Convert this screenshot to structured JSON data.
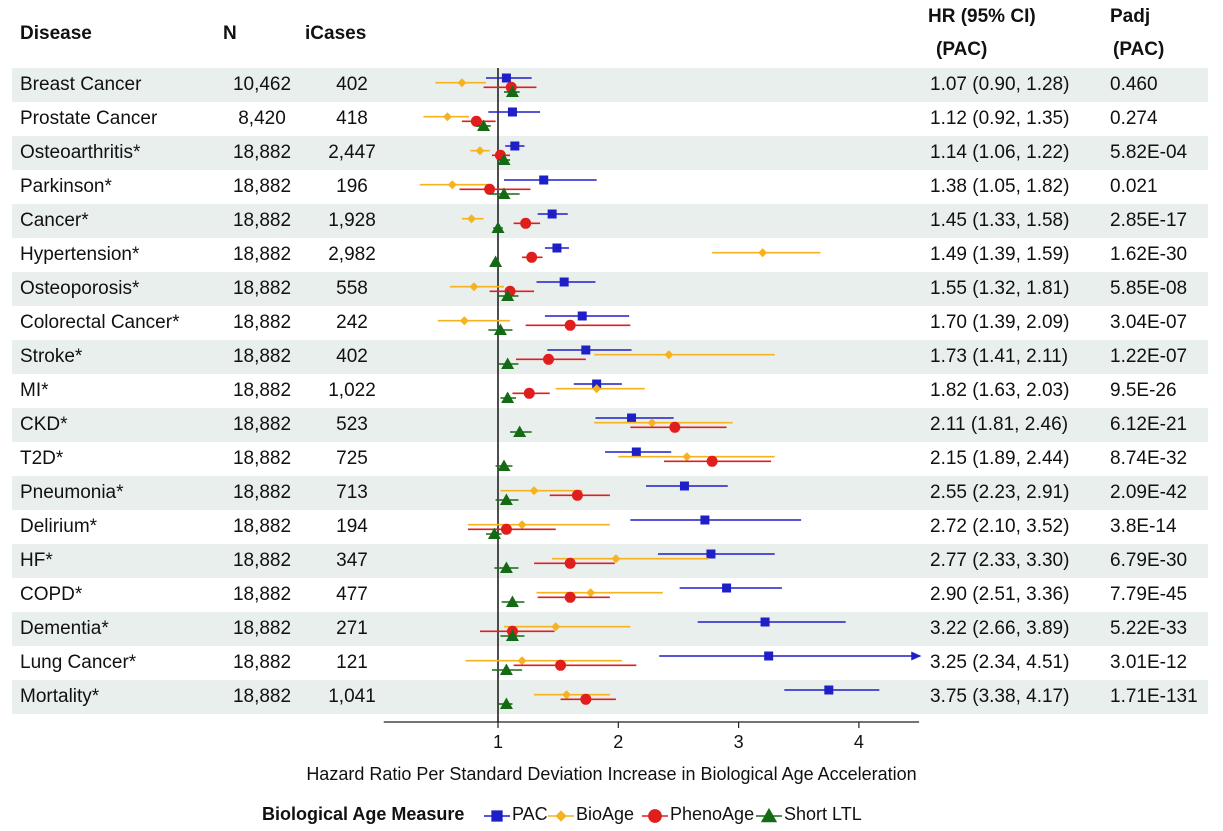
{
  "headers": {
    "disease": "Disease",
    "n": "N",
    "icases": "iCases",
    "hr_line1": "HR (95% CI)",
    "hr_line2": "(PAC)",
    "padj_line1": "Padj",
    "padj_line2": "(PAC)"
  },
  "table": [
    {
      "disease": "Breast Cancer",
      "n": "10,462",
      "icases": "402",
      "hr": "1.07 (0.90, 1.28)",
      "padj": "0.460"
    },
    {
      "disease": "Prostate Cancer",
      "n": "8,420",
      "icases": "418",
      "hr": "1.12 (0.92, 1.35)",
      "padj": "0.274"
    },
    {
      "disease": "Osteoarthritis*",
      "n": "18,882",
      "icases": "2,447",
      "hr": "1.14 (1.06, 1.22)",
      "padj": "5.82E-04"
    },
    {
      "disease": "Parkinson*",
      "n": "18,882",
      "icases": "196",
      "hr": "1.38 (1.05, 1.82)",
      "padj": "0.021"
    },
    {
      "disease": "Cancer*",
      "n": "18,882",
      "icases": "1,928",
      "hr": "1.45 (1.33, 1.58)",
      "padj": "2.85E-17"
    },
    {
      "disease": "Hypertension*",
      "n": "18,882",
      "icases": "2,982",
      "hr": "1.49 (1.39, 1.59)",
      "padj": "1.62E-30"
    },
    {
      "disease": "Osteoporosis*",
      "n": "18,882",
      "icases": "558",
      "hr": "1.55 (1.32, 1.81)",
      "padj": "5.85E-08"
    },
    {
      "disease": "Colorectal Cancer*",
      "n": "18,882",
      "icases": "242",
      "hr": "1.70 (1.39, 2.09)",
      "padj": "3.04E-07"
    },
    {
      "disease": "Stroke*",
      "n": "18,882",
      "icases": "402",
      "hr": "1.73 (1.41, 2.11)",
      "padj": "1.22E-07"
    },
    {
      "disease": "MI*",
      "n": "18,882",
      "icases": "1,022",
      "hr": "1.82 (1.63, 2.03)",
      "padj": "9.5E-26"
    },
    {
      "disease": "CKD*",
      "n": "18,882",
      "icases": "523",
      "hr": "2.11 (1.81, 2.46)",
      "padj": "6.12E-21"
    },
    {
      "disease": "T2D*",
      "n": "18,882",
      "icases": "725",
      "hr": "2.15 (1.89, 2.44)",
      "padj": "8.74E-32"
    },
    {
      "disease": "Pneumonia*",
      "n": "18,882",
      "icases": "713",
      "hr": "2.55 (2.23, 2.91)",
      "padj": "2.09E-42"
    },
    {
      "disease": "Delirium*",
      "n": "18,882",
      "icases": "194",
      "hr": "2.72 (2.10, 3.52)",
      "padj": "3.8E-14"
    },
    {
      "disease": "HF*",
      "n": "18,882",
      "icases": "347",
      "hr": "2.77 (2.33, 3.30)",
      "padj": "6.79E-30"
    },
    {
      "disease": "COPD*",
      "n": "18,882",
      "icases": "477",
      "hr": "2.90 (2.51, 3.36)",
      "padj": "7.79E-45"
    },
    {
      "disease": "Dementia*",
      "n": "18,882",
      "icases": "271",
      "hr": "3.22 (2.66, 3.89)",
      "padj": "5.22E-33"
    },
    {
      "disease": "Lung Cancer*",
      "n": "18,882",
      "icases": "121",
      "hr": "3.25 (2.34, 4.51)",
      "padj": "3.01E-12"
    },
    {
      "disease": "Mortality*",
      "n": "18,882",
      "icases": "1,041",
      "hr": "3.75 (3.38, 4.17)",
      "padj": "1.71E-131"
    }
  ],
  "chart_data": {
    "type": "forest",
    "xlabel": "Hazard Ratio Per Standard Deviation Increase in Biological Age Acceleration",
    "xlim": [
      0.05,
      4.5
    ],
    "xticks": [
      1,
      2,
      3,
      4
    ],
    "reference_line": 1,
    "grid": false,
    "legend_title": "Biological Age Measure",
    "legend_position": "bottom",
    "categories": [
      "Breast Cancer",
      "Prostate Cancer",
      "Osteoarthritis*",
      "Parkinson*",
      "Cancer*",
      "Hypertension*",
      "Osteoporosis*",
      "Colorectal Cancer*",
      "Stroke*",
      "MI*",
      "CKD*",
      "T2D*",
      "Pneumonia*",
      "Delirium*",
      "HF*",
      "COPD*",
      "Dementia*",
      "Lung Cancer*",
      "Mortality*"
    ],
    "series": [
      {
        "name": "PAC",
        "color": "#1f1fc8",
        "marker": "square",
        "offset": -1,
        "points": [
          {
            "hr": 1.07,
            "lo": 0.9,
            "hi": 1.28
          },
          {
            "hr": 1.12,
            "lo": 0.92,
            "hi": 1.35
          },
          {
            "hr": 1.14,
            "lo": 1.06,
            "hi": 1.22
          },
          {
            "hr": 1.38,
            "lo": 1.05,
            "hi": 1.82
          },
          {
            "hr": 1.45,
            "lo": 1.33,
            "hi": 1.58
          },
          {
            "hr": 1.49,
            "lo": 1.39,
            "hi": 1.59
          },
          {
            "hr": 1.55,
            "lo": 1.32,
            "hi": 1.81
          },
          {
            "hr": 1.7,
            "lo": 1.39,
            "hi": 2.09
          },
          {
            "hr": 1.73,
            "lo": 1.41,
            "hi": 2.11
          },
          {
            "hr": 1.82,
            "lo": 1.63,
            "hi": 2.03
          },
          {
            "hr": 2.11,
            "lo": 1.81,
            "hi": 2.46
          },
          {
            "hr": 2.15,
            "lo": 1.89,
            "hi": 2.44
          },
          {
            "hr": 2.55,
            "lo": 2.23,
            "hi": 2.91
          },
          {
            "hr": 2.72,
            "lo": 2.1,
            "hi": 3.52
          },
          {
            "hr": 2.77,
            "lo": 2.33,
            "hi": 3.3
          },
          {
            "hr": 2.9,
            "lo": 2.51,
            "hi": 3.36
          },
          {
            "hr": 3.22,
            "lo": 2.66,
            "hi": 3.89
          },
          {
            "hr": 3.25,
            "lo": 2.34,
            "hi": 4.51,
            "arrow": true
          },
          {
            "hr": 3.75,
            "lo": 3.38,
            "hi": 4.17
          }
        ]
      },
      {
        "name": "BioAge",
        "color": "#f5b31f",
        "marker": "diamond",
        "offset": -0.33,
        "points": [
          {
            "hr": 0.7,
            "lo": 0.48,
            "hi": 0.9
          },
          {
            "hr": 0.58,
            "lo": 0.38,
            "hi": 0.76
          },
          {
            "hr": 0.85,
            "lo": 0.77,
            "hi": 0.93
          },
          {
            "hr": 0.62,
            "lo": 0.35,
            "hi": 0.95
          },
          {
            "hr": 0.78,
            "lo": 0.7,
            "hi": 0.88
          },
          {
            "hr": 3.2,
            "lo": 2.78,
            "hi": 3.68
          },
          {
            "hr": 0.8,
            "lo": 0.6,
            "hi": 1.05
          },
          {
            "hr": 0.72,
            "lo": 0.5,
            "hi": 1.1
          },
          {
            "hr": 2.42,
            "lo": 1.8,
            "hi": 3.3
          },
          {
            "hr": 1.82,
            "lo": 1.48,
            "hi": 2.22
          },
          {
            "hr": 2.28,
            "lo": 1.8,
            "hi": 2.95
          },
          {
            "hr": 2.57,
            "lo": 2.0,
            "hi": 3.3
          },
          {
            "hr": 1.3,
            "lo": 1.02,
            "hi": 1.7
          },
          {
            "hr": 1.2,
            "lo": 0.75,
            "hi": 1.93
          },
          {
            "hr": 1.98,
            "lo": 1.45,
            "hi": 2.75
          },
          {
            "hr": 1.77,
            "lo": 1.32,
            "hi": 2.37
          },
          {
            "hr": 1.48,
            "lo": 1.05,
            "hi": 2.1
          },
          {
            "hr": 1.2,
            "lo": 0.73,
            "hi": 2.03
          },
          {
            "hr": 1.57,
            "lo": 1.3,
            "hi": 1.93
          }
        ]
      },
      {
        "name": "PhenoAge",
        "color": "#e01e1e",
        "marker": "circle",
        "offset": 0.33,
        "points": [
          {
            "hr": 1.11,
            "lo": 0.88,
            "hi": 1.32
          },
          {
            "hr": 0.82,
            "lo": 0.7,
            "hi": 0.98
          },
          {
            "hr": 1.02,
            "lo": 0.95,
            "hi": 1.1
          },
          {
            "hr": 0.93,
            "lo": 0.68,
            "hi": 1.27
          },
          {
            "hr": 1.23,
            "lo": 1.13,
            "hi": 1.35
          },
          {
            "hr": 1.28,
            "lo": 1.2,
            "hi": 1.37
          },
          {
            "hr": 1.1,
            "lo": 0.93,
            "hi": 1.3
          },
          {
            "hr": 1.6,
            "lo": 1.23,
            "hi": 2.1
          },
          {
            "hr": 1.42,
            "lo": 1.15,
            "hi": 1.73
          },
          {
            "hr": 1.26,
            "lo": 1.12,
            "hi": 1.43
          },
          {
            "hr": 2.47,
            "lo": 2.1,
            "hi": 2.9
          },
          {
            "hr": 2.78,
            "lo": 2.38,
            "hi": 3.27
          },
          {
            "hr": 1.66,
            "lo": 1.43,
            "hi": 1.93
          },
          {
            "hr": 1.07,
            "lo": 0.75,
            "hi": 1.48
          },
          {
            "hr": 1.6,
            "lo": 1.3,
            "hi": 1.97
          },
          {
            "hr": 1.6,
            "lo": 1.33,
            "hi": 1.93
          },
          {
            "hr": 1.12,
            "lo": 0.85,
            "hi": 1.47
          },
          {
            "hr": 1.52,
            "lo": 1.13,
            "hi": 2.15
          },
          {
            "hr": 1.73,
            "lo": 1.52,
            "hi": 1.98
          }
        ]
      },
      {
        "name": "Short LTL",
        "color": "#156a15",
        "marker": "triangle",
        "offset": 1,
        "points": [
          {
            "hr": 1.12,
            "lo": 1.05,
            "hi": 1.18
          },
          {
            "hr": 0.88,
            "lo": 0.82,
            "hi": 0.94
          },
          {
            "hr": 1.05,
            "lo": 1.0,
            "hi": 1.1
          },
          {
            "hr": 1.05,
            "lo": 0.93,
            "hi": 1.18
          },
          {
            "hr": 1.0,
            "lo": 0.96,
            "hi": 1.04
          },
          {
            "hr": 0.98,
            "lo": 0.95,
            "hi": 1.01
          },
          {
            "hr": 1.08,
            "lo": 1.0,
            "hi": 1.17
          },
          {
            "hr": 1.02,
            "lo": 0.92,
            "hi": 1.12
          },
          {
            "hr": 1.08,
            "lo": 1.0,
            "hi": 1.17
          },
          {
            "hr": 1.08,
            "lo": 1.02,
            "hi": 1.15
          },
          {
            "hr": 1.18,
            "lo": 1.1,
            "hi": 1.28
          },
          {
            "hr": 1.05,
            "lo": 0.98,
            "hi": 1.12
          },
          {
            "hr": 1.07,
            "lo": 0.98,
            "hi": 1.17
          },
          {
            "hr": 0.97,
            "lo": 0.9,
            "hi": 1.03
          },
          {
            "hr": 1.07,
            "lo": 0.97,
            "hi": 1.17
          },
          {
            "hr": 1.12,
            "lo": 1.03,
            "hi": 1.22
          },
          {
            "hr": 1.12,
            "lo": 1.02,
            "hi": 1.22
          },
          {
            "hr": 1.07,
            "lo": 0.95,
            "hi": 1.2
          },
          {
            "hr": 1.07,
            "lo": 1.0,
            "hi": 1.12
          }
        ]
      }
    ]
  }
}
